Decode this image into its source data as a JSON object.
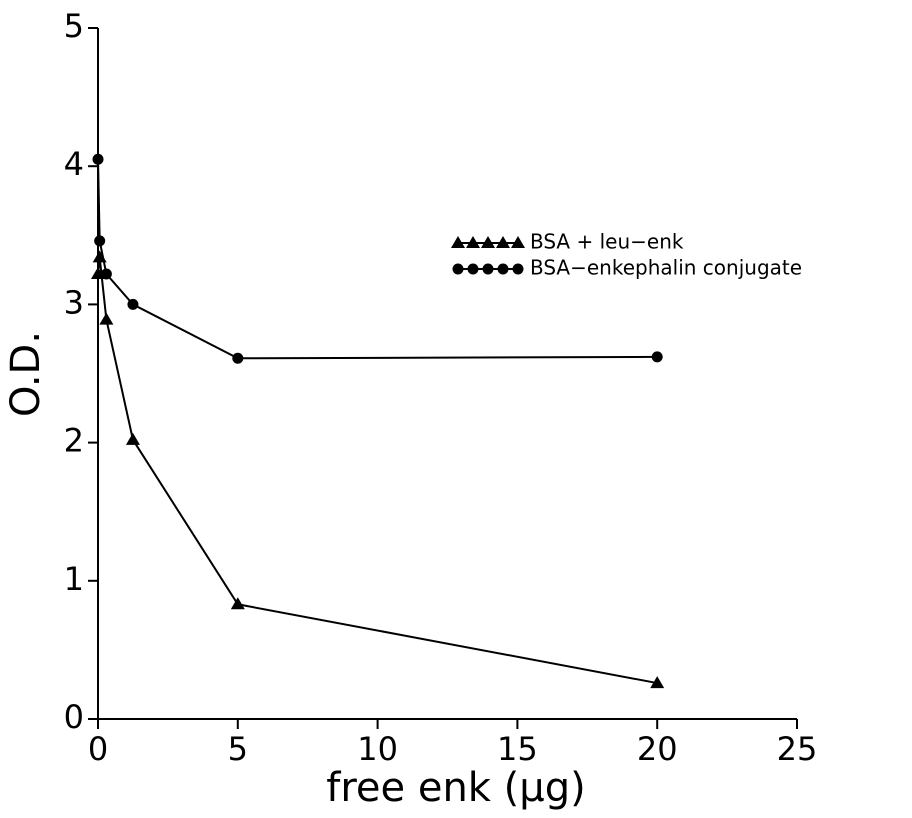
{
  "chart_data": {
    "type": "line",
    "x_label": "free enk (μg)",
    "y_label": "O.D.",
    "xlim": [
      0,
      25
    ],
    "xticks": [
      0,
      5,
      10,
      15,
      20,
      25
    ],
    "ylim": [
      0,
      5
    ],
    "yticks": [
      0,
      1,
      2,
      3,
      4,
      5
    ],
    "legend": "right",
    "series": [
      {
        "name": "BSA + leu−enk",
        "color": "#000000",
        "marker": "triangle",
        "x": [
          0,
          0.06,
          0.3,
          1.25,
          5,
          20
        ],
        "values": [
          3.22,
          3.34,
          2.89,
          2.02,
          0.83,
          0.26
        ]
      },
      {
        "name": "BSA−enkephalin conjugate",
        "color": "#000000",
        "marker": "circle",
        "x": [
          0,
          0.06,
          0.3,
          1.25,
          5,
          20
        ],
        "values": [
          4.05,
          3.46,
          3.22,
          3.0,
          2.61,
          2.62
        ]
      }
    ]
  }
}
